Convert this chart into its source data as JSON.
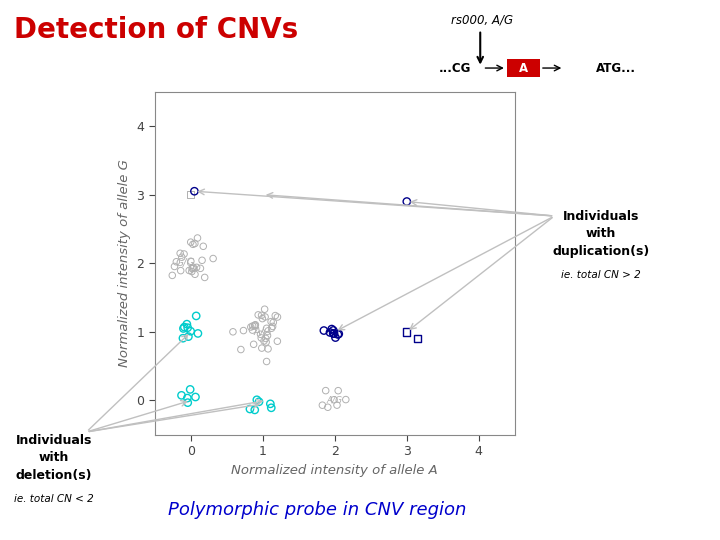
{
  "title": "Detection of CNVs",
  "title_color": "#cc0000",
  "xlabel": "Normalized intensity of allele A",
  "ylabel": "Normalized intensity of allele G",
  "xlim": [
    -0.5,
    4.5
  ],
  "ylim": [
    -0.5,
    4.5
  ],
  "xticks": [
    0,
    1,
    2,
    3,
    4
  ],
  "yticks": [
    0,
    1,
    2,
    3,
    4
  ],
  "rs_label": "rs000, A/G",
  "seq_green": "#90ee90",
  "seq_red": "#cc0000",
  "polymorphic_text": "Polymorphic probe in CNV region",
  "polymorphic_color": "#0000cc",
  "indiv_dupl_line1": "Individuals",
  "indiv_dupl_line2": "with",
  "indiv_dupl_line3": "duplication(s)",
  "indiv_dupl_sub": "ie. total CN > 2",
  "indiv_del_line1": "Individuals",
  "indiv_del_line2": "with",
  "indiv_del_line3": "deletion(s)",
  "indiv_del_sub": "ie. total CN < 2",
  "gray_color": "#b0b0b0",
  "cyan_color": "#00cccc",
  "blue_color": "#00008b",
  "arrow_color": "#c0c0c0"
}
